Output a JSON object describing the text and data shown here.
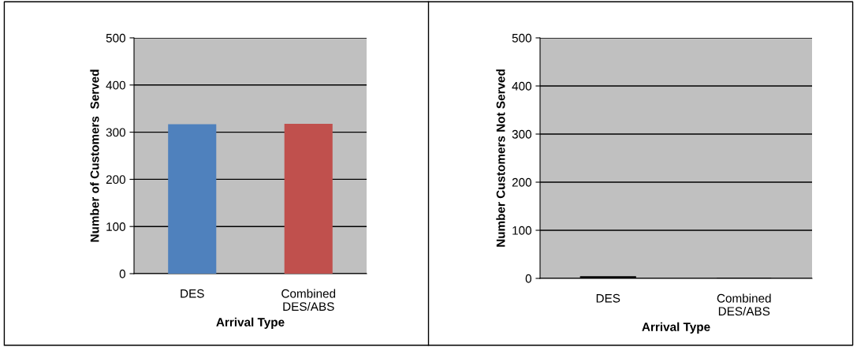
{
  "chart_data": [
    {
      "type": "bar",
      "categories": [
        "DES",
        "Combined\nDES/ABS"
      ],
      "values": [
        315,
        316
      ],
      "colors": [
        "#4f81bd",
        "#c0504d"
      ],
      "xlabel": "Arrival Type",
      "ylabel": "Number of Customers  Served",
      "ylim": [
        0,
        500
      ],
      "yticks": [
        0,
        100,
        200,
        300,
        400,
        500
      ],
      "grid": "y"
    },
    {
      "type": "bar",
      "categories": [
        "DES",
        "Combined\nDES/ABS"
      ],
      "values": [
        3,
        0
      ],
      "colors": [
        "#000000",
        "#000000"
      ],
      "xlabel": "Arrival Type",
      "ylabel": "Number Customers Not Served",
      "ylim": [
        0,
        500
      ],
      "yticks": [
        0,
        100,
        200,
        300,
        400,
        500
      ],
      "grid": "y"
    }
  ]
}
